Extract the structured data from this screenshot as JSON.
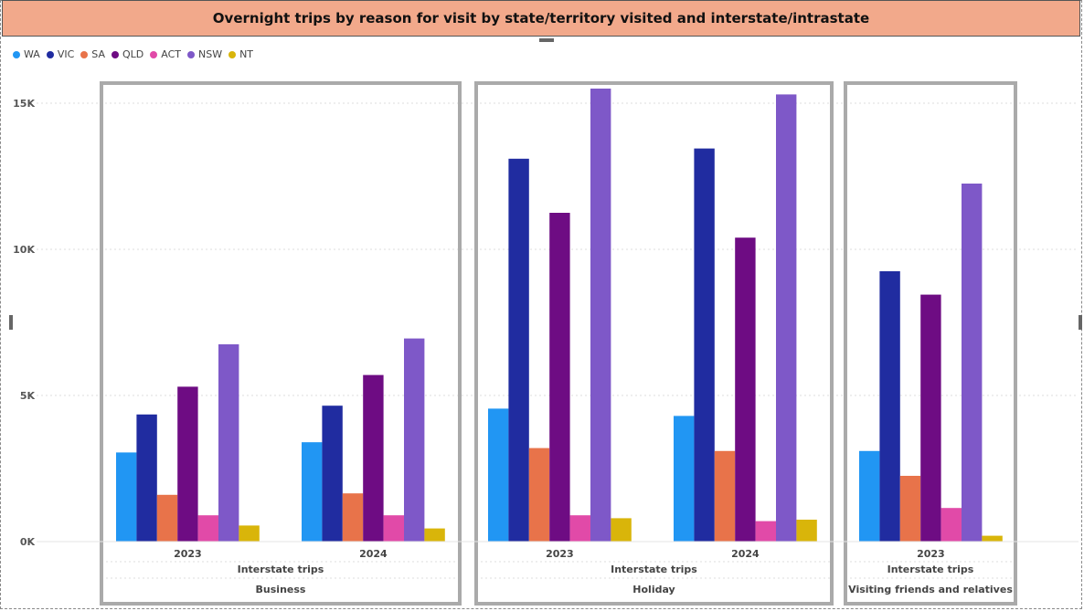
{
  "chart_data": {
    "type": "bar",
    "title": "Overnight trips by reason for visit by state/territory visited and interstate/intrastate",
    "legend_position": "top-left",
    "grid": true,
    "ylim": [
      0,
      15000
    ],
    "yticks": [
      {
        "value": 0,
        "label": "0K"
      },
      {
        "value": 5000,
        "label": "5K"
      },
      {
        "value": 10000,
        "label": "10K"
      },
      {
        "value": 15000,
        "label": "15K"
      }
    ],
    "series_names": [
      "WA",
      "VIC",
      "SA",
      "QLD",
      "ACT",
      "NSW",
      "NT"
    ],
    "colors": [
      "#2196f3",
      "#202ca0",
      "#e8734a",
      "#6e0c83",
      "#e14aa8",
      "#7e58c8",
      "#d9b50a"
    ],
    "panels": [
      {
        "reason": "Business",
        "type_label": "Interstate trips",
        "groups": [
          {
            "year": "2023",
            "values": [
              3050,
              4350,
              1600,
              5300,
              900,
              6750,
              550
            ]
          },
          {
            "year": "2024",
            "values": [
              3400,
              4650,
              1650,
              5700,
              900,
              6950,
              450
            ]
          }
        ]
      },
      {
        "reason": "Holiday",
        "type_label": "Interstate trips",
        "groups": [
          {
            "year": "2023",
            "values": [
              4550,
              13100,
              3200,
              11250,
              900,
              15500,
              800
            ]
          },
          {
            "year": "2024",
            "values": [
              4300,
              13450,
              3100,
              10400,
              700,
              15300,
              750
            ]
          }
        ]
      },
      {
        "reason": "Visiting friends and relatives",
        "type_label": "Interstate trips",
        "groups": [
          {
            "year": "2023",
            "values": [
              3100,
              9250,
              2250,
              8450,
              1150,
              12250,
              200
            ]
          }
        ]
      }
    ]
  }
}
